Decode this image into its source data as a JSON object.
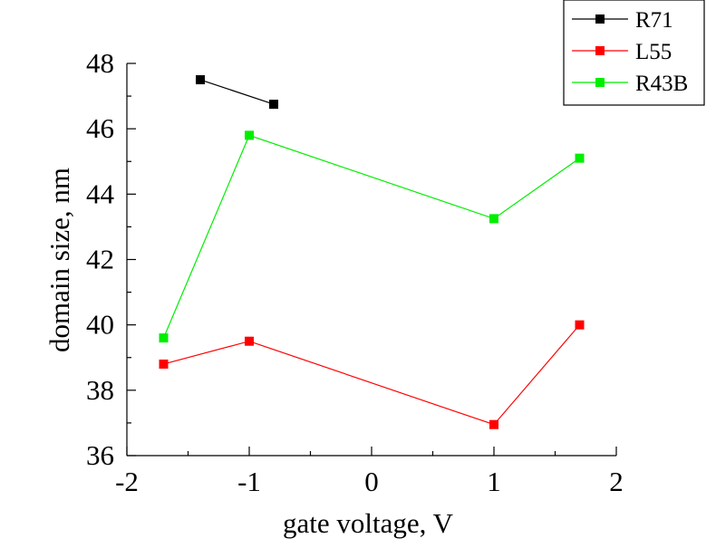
{
  "chart_data": {
    "type": "line",
    "title": "",
    "xlabel": "gate voltage, V",
    "ylabel": "domain size, nm",
    "xlim": [
      -2,
      2
    ],
    "ylim": [
      36,
      48
    ],
    "xticks": [
      -2,
      -1,
      0,
      1,
      2
    ],
    "xtick_labels": [
      "-2",
      "-1",
      "0",
      "1",
      "2"
    ],
    "yticks": [
      36,
      38,
      40,
      42,
      44,
      46,
      48
    ],
    "ytick_labels": [
      "36",
      "38",
      "40",
      "42",
      "44",
      "46",
      "48"
    ],
    "grid": false,
    "legend_position": "top-right",
    "series": [
      {
        "name": "R71",
        "color": "#000000",
        "marker": "square",
        "x": [
          -1.4,
          -0.8
        ],
        "y": [
          47.5,
          46.75
        ]
      },
      {
        "name": "L55",
        "color": "#ff0000",
        "marker": "square",
        "x": [
          -1.7,
          -1.0,
          1.0,
          1.7
        ],
        "y": [
          38.8,
          39.5,
          36.95,
          40.0
        ]
      },
      {
        "name": "R43B",
        "color": "#00ee00",
        "marker": "square",
        "x": [
          -1.7,
          -1.0,
          1.0,
          1.7
        ],
        "y": [
          39.6,
          45.8,
          43.25,
          45.1
        ]
      }
    ]
  }
}
